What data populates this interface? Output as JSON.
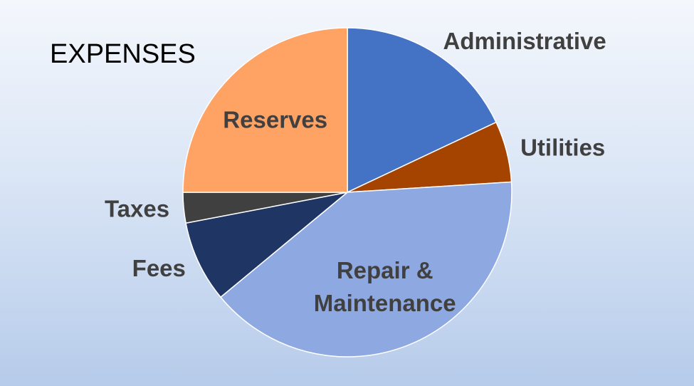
{
  "chart_data": {
    "type": "pie",
    "title": "EXPENSES",
    "start_angle_deg": 0,
    "direction": "clockwise",
    "legend": "none",
    "categories": [
      "Administrative",
      "Utilities",
      "Repair & Maintenance",
      "Fees",
      "Taxes",
      "Reserves"
    ],
    "label_lines": [
      [
        "Administrative"
      ],
      [
        "Utilities"
      ],
      [
        "Repair &",
        "Maintenance"
      ],
      [
        "Fees"
      ],
      [
        "Taxes"
      ],
      [
        "Reserves"
      ]
    ],
    "values": [
      18,
      6,
      40,
      8,
      3,
      25
    ],
    "colors": [
      "#4472C4",
      "#A54300",
      "#8EA9E1",
      "#1F3564",
      "#404040",
      "#FFA365"
    ],
    "label_placement": [
      "outside",
      "outside",
      "inside",
      "outside",
      "outside",
      "inside"
    ]
  }
}
